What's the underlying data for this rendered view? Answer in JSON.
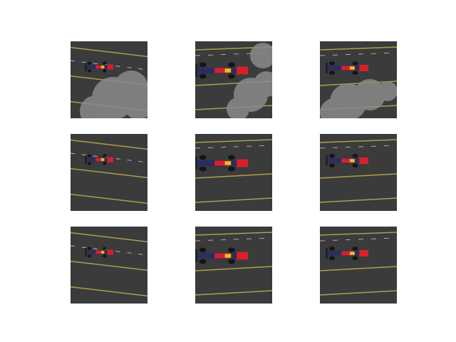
{
  "grid": {
    "rows": 3,
    "cols": 3,
    "tiles": [
      {
        "id": "r1c1",
        "smoke": true,
        "car": "small",
        "stripes": "diag"
      },
      {
        "id": "r1c2",
        "smoke": true,
        "car": "large",
        "stripes": "flat"
      },
      {
        "id": "r1c3",
        "smoke": true,
        "car": "medium",
        "stripes": "flat"
      },
      {
        "id": "r2c1",
        "smoke": false,
        "car": "small",
        "stripes": "diag"
      },
      {
        "id": "r2c2",
        "smoke": false,
        "car": "large",
        "stripes": "flat"
      },
      {
        "id": "r2c3",
        "smoke": false,
        "car": "medium",
        "stripes": "flat"
      },
      {
        "id": "r3c1",
        "smoke": false,
        "car": "small",
        "stripes": "diag"
      },
      {
        "id": "r3c2",
        "smoke": false,
        "car": "large",
        "stripes": "flat"
      },
      {
        "id": "r3c3",
        "smoke": false,
        "car": "medium",
        "stripes": "flat"
      }
    ]
  },
  "colors": {
    "asphalt": "#3b3b3b",
    "lane_yellow": "#c9b84a",
    "lane_white": "#d9d9d9",
    "smoke": "#8a8a8a",
    "car_body": "#2a2f5a",
    "car_red": "#d8202a",
    "car_yellow": "#e8c020"
  }
}
